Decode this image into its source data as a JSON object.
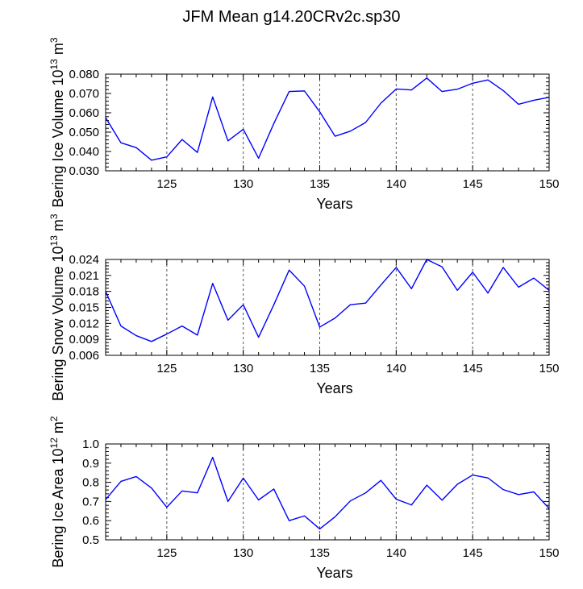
{
  "title": "JFM Mean g14.20CRv2c.sp30",
  "line_color": "#0000ff",
  "chart_data": [
    {
      "type": "line",
      "id": "ice-volume",
      "xlabel": "Years",
      "ylabel": "Bering Ice Volume 10",
      "ylabel_sup": "13",
      "ylabel_unit": "m",
      "ylabel_unit_sup": "3",
      "xlim": [
        121,
        150
      ],
      "ylim": [
        0.03,
        0.08
      ],
      "xticks": [
        125,
        130,
        135,
        140,
        145,
        150
      ],
      "xtick_labels": [
        "125",
        "130",
        "135",
        "140",
        "145",
        "150"
      ],
      "yticks": [
        0.03,
        0.04,
        0.05,
        0.06,
        0.07,
        0.08
      ],
      "ytick_labels": [
        "0.030",
        "0.040",
        "0.050",
        "0.060",
        "0.070",
        "0.080"
      ],
      "grid_x": [
        125,
        130,
        135,
        140,
        145
      ],
      "x": [
        121,
        122,
        123,
        124,
        125,
        126,
        127,
        128,
        129,
        130,
        131,
        132,
        133,
        134,
        135,
        136,
        137,
        138,
        139,
        140,
        141,
        142,
        143,
        144,
        145,
        146,
        147,
        148,
        149,
        150
      ],
      "values": [
        0.0575,
        0.0445,
        0.042,
        0.0355,
        0.0372,
        0.0462,
        0.0395,
        0.0682,
        0.0455,
        0.0515,
        0.0365,
        0.0545,
        0.071,
        0.0713,
        0.0605,
        0.0479,
        0.0505,
        0.055,
        0.065,
        0.0723,
        0.0718,
        0.078,
        0.071,
        0.0722,
        0.0753,
        0.077,
        0.0715,
        0.0644,
        0.0665,
        0.068
      ]
    },
    {
      "type": "line",
      "id": "snow-volume",
      "xlabel": "Years",
      "ylabel": "Bering Snow Volume 10",
      "ylabel_sup": "13",
      "ylabel_unit": "m",
      "ylabel_unit_sup": "3",
      "xlim": [
        121,
        150
      ],
      "ylim": [
        0.006,
        0.024
      ],
      "xticks": [
        125,
        130,
        135,
        140,
        145,
        150
      ],
      "xtick_labels": [
        "125",
        "130",
        "135",
        "140",
        "145",
        "150"
      ],
      "yticks": [
        0.006,
        0.009,
        0.012,
        0.015,
        0.018,
        0.021,
        0.024
      ],
      "ytick_labels": [
        "0.006",
        "0.009",
        "0.012",
        "0.015",
        "0.018",
        "0.021",
        "0.024"
      ],
      "grid_x": [
        125,
        130,
        135,
        140,
        145
      ],
      "x": [
        121,
        122,
        123,
        124,
        125,
        126,
        127,
        128,
        129,
        130,
        131,
        132,
        133,
        134,
        135,
        136,
        137,
        138,
        139,
        140,
        141,
        142,
        143,
        144,
        145,
        146,
        147,
        148,
        149,
        150
      ],
      "values": [
        0.018,
        0.0115,
        0.0097,
        0.0086,
        0.01,
        0.0115,
        0.0098,
        0.0195,
        0.0126,
        0.0155,
        0.0094,
        0.0155,
        0.022,
        0.019,
        0.0113,
        0.013,
        0.0155,
        0.0158,
        0.0192,
        0.0225,
        0.0185,
        0.024,
        0.0226,
        0.0182,
        0.0216,
        0.0177,
        0.0225,
        0.0188,
        0.0205,
        0.0182
      ]
    },
    {
      "type": "line",
      "id": "ice-area",
      "xlabel": "Years",
      "ylabel": "Bering Ice Area 10",
      "ylabel_sup": "12",
      "ylabel_unit": "m",
      "ylabel_unit_sup": "2",
      "xlim": [
        121,
        150
      ],
      "ylim": [
        0.5,
        1.0
      ],
      "xticks": [
        125,
        130,
        135,
        140,
        145,
        150
      ],
      "xtick_labels": [
        "125",
        "130",
        "135",
        "140",
        "145",
        "150"
      ],
      "yticks": [
        0.5,
        0.6,
        0.7,
        0.8,
        0.9,
        1.0
      ],
      "ytick_labels": [
        "0.5",
        "0.6",
        "0.7",
        "0.8",
        "0.9",
        "1.0"
      ],
      "grid_x": [
        125,
        130,
        135,
        140,
        145
      ],
      "x": [
        121,
        122,
        123,
        124,
        125,
        126,
        127,
        128,
        129,
        130,
        131,
        132,
        133,
        134,
        135,
        136,
        137,
        138,
        139,
        140,
        141,
        142,
        143,
        144,
        145,
        146,
        147,
        148,
        149,
        150
      ],
      "values": [
        0.71,
        0.805,
        0.83,
        0.77,
        0.67,
        0.755,
        0.745,
        0.93,
        0.7,
        0.822,
        0.708,
        0.765,
        0.6,
        0.625,
        0.557,
        0.62,
        0.703,
        0.745,
        0.81,
        0.712,
        0.682,
        0.785,
        0.707,
        0.79,
        0.838,
        0.823,
        0.762,
        0.736,
        0.75,
        0.663
      ]
    }
  ]
}
